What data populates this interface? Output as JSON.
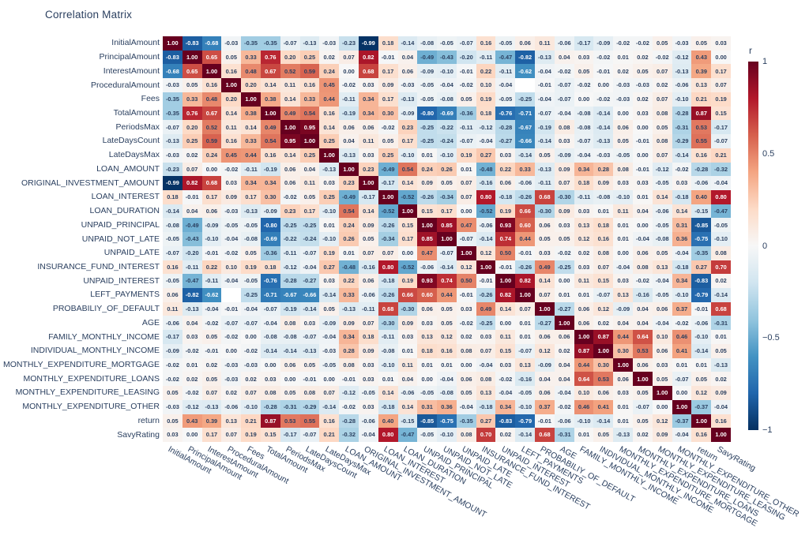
{
  "title": "Correlation Matrix",
  "chart_data": {
    "type": "heatmap",
    "title": "Correlation Matrix",
    "value_format": "2 decimal places, values annotated in each cell",
    "zmin": -1,
    "zmax": 1,
    "grid": false,
    "legend_position": "colorbar right",
    "colorbar": {
      "title": "r",
      "ticks": [
        "1",
        "0.5",
        "0",
        "−0.5",
        "−1"
      ],
      "tick_values": [
        1,
        0.5,
        0,
        -0.5,
        -1
      ]
    },
    "colors": {
      "text_dark": "#2a3f5f",
      "text_light": "#ffffff",
      "white_text_threshold": 0.6,
      "nan_cell": "#ffffff",
      "background": "#ffffff"
    },
    "colorscale": {
      "name": "RdBu reversed (diverging)",
      "anchors_low_to_high": [
        "#053061",
        "#2166ac",
        "#4393c3",
        "#92c5de",
        "#d1e5f0",
        "#f7f7f7",
        "#fddbc7",
        "#f4a582",
        "#d6604d",
        "#b2182b",
        "#67001f"
      ]
    },
    "labels": [
      "InitialAmount",
      "PrincipalAmount",
      "InterestAmount",
      "ProceduralAmount",
      "Fees",
      "TotalAmount",
      "PeriodsMax",
      "LateDaysCount",
      "LateDaysMax",
      "LOAN_AMOUNT",
      "ORIGINAL_INVESTMENT_AMOUNT",
      "LOAN_INTEREST",
      "LOAN_DURATION",
      "UNPAID_PRINCIPAL",
      "UNPAID_NOT_LATE",
      "UNPAID_LATE",
      "INSURANCE_FUND_INTEREST",
      "UNPAID_INTEREST",
      "LEFT_PAYMENTS",
      "PROBABILIY_OF_DEFAULT",
      "AGE",
      "FAMILY_MONTHLY_INCOME",
      "INDIVIDUAL_MONTHLY_INCOME",
      "MONTHLY_EXPENDITURE_MORTGAGE",
      "MONTHLY_EXPENDITURE_LOANS",
      "MONTHLY_EXPENDITURE_LEASING",
      "MONTHLY_EXPENDITURE_OTHER",
      "return",
      "SavyRating"
    ],
    "matrix": [
      [
        1.0,
        -0.83,
        -0.68,
        -0.03,
        -0.35,
        -0.35,
        -0.07,
        -0.13,
        -0.03,
        -0.23,
        -0.99,
        0.18,
        -0.14,
        -0.08,
        -0.05,
        -0.07,
        0.16,
        -0.05,
        0.06,
        0.11,
        -0.06,
        -0.17,
        -0.09,
        -0.02,
        -0.02,
        0.05,
        -0.03,
        0.05,
        0.03
      ],
      [
        -0.83,
        1.0,
        0.65,
        0.05,
        0.33,
        0.76,
        0.2,
        0.25,
        0.02,
        0.07,
        0.82,
        -0.01,
        0.04,
        -0.49,
        -0.43,
        -0.2,
        -0.11,
        -0.47,
        -0.82,
        -0.13,
        0.04,
        0.03,
        -0.02,
        0.01,
        0.02,
        -0.02,
        -0.12,
        0.43,
        0.0
      ],
      [
        -0.68,
        0.65,
        1.0,
        0.16,
        0.48,
        0.67,
        0.52,
        0.59,
        0.24,
        0.0,
        0.68,
        0.17,
        0.06,
        -0.09,
        -0.1,
        -0.01,
        0.22,
        -0.11,
        -0.62,
        -0.04,
        -0.02,
        0.05,
        -0.01,
        0.02,
        0.05,
        0.07,
        -0.13,
        0.39,
        0.17
      ],
      [
        -0.03,
        0.05,
        0.16,
        1.0,
        0.2,
        0.14,
        0.11,
        0.16,
        0.45,
        -0.02,
        0.03,
        0.09,
        -0.03,
        -0.05,
        -0.04,
        -0.02,
        0.1,
        -0.04,
        null,
        -0.01,
        -0.07,
        -0.02,
        0.0,
        -0.03,
        -0.03,
        0.02,
        -0.06,
        0.13,
        0.07
      ],
      [
        -0.35,
        0.33,
        0.48,
        0.2,
        1.0,
        0.38,
        0.14,
        0.33,
        0.44,
        -0.11,
        0.34,
        0.17,
        -0.13,
        -0.05,
        -0.08,
        0.05,
        0.19,
        -0.05,
        -0.25,
        -0.04,
        -0.07,
        0.0,
        -0.02,
        -0.03,
        0.02,
        0.07,
        -0.1,
        0.21,
        0.19
      ],
      [
        -0.35,
        0.76,
        0.67,
        0.14,
        0.38,
        1.0,
        0.49,
        0.54,
        0.16,
        -0.19,
        0.34,
        0.3,
        -0.09,
        -0.8,
        -0.69,
        -0.36,
        0.18,
        -0.76,
        -0.71,
        -0.07,
        -0.04,
        -0.08,
        -0.14,
        0.0,
        0.03,
        0.08,
        -0.28,
        0.87,
        0.15
      ],
      [
        -0.07,
        0.2,
        0.52,
        0.11,
        0.14,
        0.49,
        1.0,
        0.95,
        0.14,
        0.06,
        0.06,
        -0.02,
        0.23,
        -0.25,
        -0.22,
        -0.11,
        -0.12,
        -0.28,
        -0.67,
        -0.19,
        0.08,
        -0.08,
        -0.14,
        0.06,
        0.0,
        0.05,
        -0.31,
        0.53,
        -0.17
      ],
      [
        -0.13,
        0.25,
        0.59,
        0.16,
        0.33,
        0.54,
        0.95,
        1.0,
        0.25,
        0.04,
        0.11,
        0.05,
        0.17,
        -0.25,
        -0.24,
        -0.07,
        -0.04,
        -0.27,
        -0.66,
        -0.14,
        0.03,
        -0.07,
        -0.13,
        0.05,
        -0.01,
        0.08,
        -0.29,
        0.55,
        -0.07
      ],
      [
        -0.03,
        0.02,
        0.24,
        0.45,
        0.44,
        0.16,
        0.14,
        0.25,
        1.0,
        -0.13,
        0.03,
        0.25,
        -0.1,
        0.01,
        -0.1,
        0.19,
        0.27,
        0.03,
        -0.14,
        0.05,
        -0.09,
        -0.04,
        -0.03,
        -0.05,
        0.0,
        0.07,
        -0.14,
        0.16,
        0.21
      ],
      [
        -0.23,
        0.07,
        0.0,
        -0.02,
        -0.11,
        -0.19,
        0.06,
        0.04,
        -0.13,
        1.0,
        0.23,
        -0.49,
        0.54,
        0.24,
        0.26,
        0.01,
        -0.48,
        0.22,
        0.33,
        -0.13,
        0.09,
        0.34,
        0.28,
        0.08,
        -0.01,
        -0.12,
        -0.02,
        -0.28,
        -0.32
      ],
      [
        -0.99,
        0.82,
        0.68,
        0.03,
        0.34,
        0.34,
        0.06,
        0.11,
        0.03,
        0.23,
        1.0,
        -0.17,
        0.14,
        0.09,
        0.05,
        0.07,
        -0.16,
        0.06,
        -0.06,
        -0.11,
        0.07,
        0.18,
        0.09,
        0.03,
        0.03,
        -0.05,
        0.03,
        -0.06,
        -0.04
      ],
      [
        0.18,
        -0.01,
        0.17,
        0.09,
        0.17,
        0.3,
        -0.02,
        0.05,
        0.25,
        -0.49,
        -0.17,
        1.0,
        -0.52,
        -0.26,
        -0.34,
        0.07,
        0.8,
        -0.18,
        -0.26,
        0.68,
        -0.3,
        -0.11,
        -0.08,
        -0.1,
        0.01,
        0.14,
        -0.18,
        0.4,
        0.8
      ],
      [
        -0.14,
        0.04,
        0.06,
        -0.03,
        -0.13,
        -0.09,
        0.23,
        0.17,
        -0.1,
        0.54,
        0.14,
        -0.52,
        1.0,
        0.15,
        0.17,
        0.0,
        -0.52,
        0.19,
        0.66,
        -0.3,
        0.09,
        0.03,
        0.01,
        0.11,
        0.04,
        -0.06,
        0.14,
        -0.15,
        -0.47
      ],
      [
        -0.08,
        -0.49,
        -0.09,
        -0.05,
        -0.05,
        -0.8,
        -0.25,
        -0.25,
        0.01,
        0.24,
        0.09,
        -0.26,
        0.15,
        1.0,
        0.85,
        0.47,
        -0.06,
        0.93,
        0.6,
        0.06,
        0.03,
        0.13,
        0.18,
        0.01,
        0.0,
        -0.05,
        0.31,
        -0.85,
        -0.05
      ],
      [
        -0.05,
        -0.43,
        -0.1,
        -0.04,
        -0.08,
        -0.69,
        -0.22,
        -0.24,
        -0.1,
        0.26,
        0.05,
        -0.34,
        0.17,
        0.85,
        1.0,
        -0.07,
        -0.14,
        0.74,
        0.44,
        0.05,
        0.05,
        0.12,
        0.16,
        0.01,
        -0.04,
        -0.08,
        0.36,
        -0.75,
        -0.1
      ],
      [
        -0.07,
        -0.2,
        -0.01,
        -0.02,
        0.05,
        -0.36,
        -0.11,
        -0.07,
        0.19,
        0.01,
        0.07,
        0.07,
        0.0,
        0.47,
        -0.07,
        1.0,
        0.12,
        0.5,
        -0.01,
        0.03,
        -0.02,
        0.02,
        0.08,
        0.0,
        0.06,
        0.05,
        -0.04,
        -0.35,
        0.08
      ],
      [
        0.16,
        -0.11,
        0.22,
        0.1,
        0.19,
        0.18,
        -0.12,
        -0.04,
        0.27,
        -0.48,
        -0.16,
        0.8,
        -0.52,
        -0.06,
        -0.14,
        0.12,
        1.0,
        -0.01,
        -0.26,
        0.49,
        -0.25,
        0.03,
        0.07,
        -0.04,
        0.08,
        0.13,
        -0.18,
        0.27,
        0.7
      ],
      [
        -0.05,
        -0.47,
        -0.11,
        -0.04,
        -0.05,
        -0.76,
        -0.28,
        -0.27,
        0.03,
        0.22,
        0.06,
        -0.18,
        0.19,
        0.93,
        0.74,
        0.5,
        -0.01,
        1.0,
        0.82,
        0.14,
        0.0,
        0.11,
        0.15,
        0.03,
        -0.02,
        -0.04,
        0.34,
        -0.83,
        0.02
      ],
      [
        0.06,
        -0.82,
        -0.62,
        null,
        -0.25,
        -0.71,
        -0.67,
        -0.66,
        -0.14,
        0.33,
        -0.06,
        -0.26,
        0.66,
        0.6,
        0.44,
        -0.01,
        -0.26,
        0.82,
        1.0,
        0.07,
        0.01,
        0.01,
        -0.07,
        0.13,
        -0.16,
        -0.05,
        -0.1,
        -0.79,
        -0.14
      ],
      [
        0.11,
        -0.13,
        -0.04,
        -0.01,
        -0.04,
        -0.07,
        -0.19,
        -0.14,
        0.05,
        -0.13,
        -0.11,
        0.68,
        -0.3,
        0.06,
        0.05,
        0.03,
        0.49,
        0.14,
        0.07,
        1.0,
        -0.27,
        0.06,
        0.12,
        -0.09,
        0.04,
        0.06,
        0.37,
        -0.01,
        0.68
      ],
      [
        -0.06,
        0.04,
        -0.02,
        -0.07,
        -0.07,
        -0.04,
        0.08,
        0.03,
        -0.09,
        0.09,
        0.07,
        -0.3,
        0.09,
        0.03,
        0.05,
        -0.02,
        -0.25,
        0.0,
        0.01,
        -0.27,
        1.0,
        0.06,
        0.02,
        0.04,
        0.04,
        -0.04,
        -0.02,
        -0.06,
        -0.31
      ],
      [
        -0.17,
        0.03,
        0.05,
        -0.02,
        0.0,
        -0.08,
        -0.08,
        -0.07,
        -0.04,
        0.34,
        0.18,
        -0.11,
        0.03,
        0.13,
        0.12,
        0.02,
        0.03,
        0.11,
        0.01,
        0.06,
        0.06,
        1.0,
        0.87,
        0.44,
        0.64,
        0.1,
        0.46,
        -0.1,
        0.01
      ],
      [
        -0.09,
        -0.02,
        -0.01,
        0.0,
        -0.02,
        -0.14,
        -0.14,
        -0.13,
        -0.03,
        0.28,
        0.09,
        -0.08,
        0.01,
        0.18,
        0.16,
        0.08,
        0.07,
        0.15,
        -0.07,
        0.12,
        0.02,
        0.87,
        1.0,
        0.3,
        0.53,
        0.06,
        0.41,
        -0.14,
        0.05
      ],
      [
        -0.02,
        0.01,
        0.02,
        -0.03,
        -0.03,
        0.0,
        0.06,
        0.05,
        -0.05,
        0.08,
        0.03,
        -0.1,
        0.11,
        0.01,
        0.01,
        0.0,
        -0.04,
        0.03,
        0.13,
        -0.09,
        0.04,
        0.44,
        0.3,
        1.0,
        0.06,
        0.03,
        0.01,
        0.01,
        -0.13
      ],
      [
        -0.02,
        0.02,
        0.05,
        -0.03,
        0.02,
        0.03,
        0.0,
        -0.01,
        0.0,
        -0.01,
        0.03,
        0.01,
        0.04,
        0.0,
        -0.04,
        0.06,
        0.08,
        -0.02,
        -0.16,
        0.04,
        0.04,
        0.64,
        0.53,
        0.06,
        1.0,
        0.05,
        -0.07,
        0.05,
        0.02
      ],
      [
        0.05,
        -0.02,
        0.07,
        0.02,
        0.07,
        0.08,
        0.05,
        0.08,
        0.07,
        -0.12,
        -0.05,
        0.14,
        -0.06,
        -0.05,
        -0.08,
        0.05,
        0.13,
        -0.04,
        -0.05,
        0.06,
        -0.04,
        0.1,
        0.06,
        0.03,
        0.05,
        1.0,
        0.0,
        0.12,
        0.09
      ],
      [
        -0.03,
        -0.12,
        -0.13,
        -0.06,
        -0.1,
        -0.28,
        -0.31,
        -0.29,
        -0.14,
        -0.02,
        0.03,
        -0.18,
        0.14,
        0.31,
        0.36,
        -0.04,
        -0.18,
        0.34,
        -0.1,
        0.37,
        -0.02,
        0.46,
        0.41,
        0.01,
        -0.07,
        0.0,
        1.0,
        -0.37,
        -0.04
      ],
      [
        0.05,
        0.43,
        0.39,
        0.13,
        0.21,
        0.87,
        0.53,
        0.55,
        0.16,
        -0.28,
        -0.06,
        0.4,
        -0.15,
        -0.85,
        -0.75,
        -0.35,
        0.27,
        -0.83,
        -0.79,
        -0.01,
        -0.06,
        -0.1,
        -0.14,
        0.01,
        0.05,
        0.12,
        -0.37,
        1.0,
        0.16
      ],
      [
        0.03,
        0.0,
        0.17,
        0.07,
        0.19,
        0.15,
        -0.17,
        -0.07,
        0.21,
        -0.32,
        -0.04,
        0.8,
        -0.47,
        -0.05,
        -0.1,
        0.08,
        0.7,
        0.02,
        -0.14,
        0.68,
        -0.31,
        0.01,
        0.05,
        -0.13,
        0.02,
        0.09,
        -0.04,
        0.16,
        1.0
      ]
    ]
  }
}
